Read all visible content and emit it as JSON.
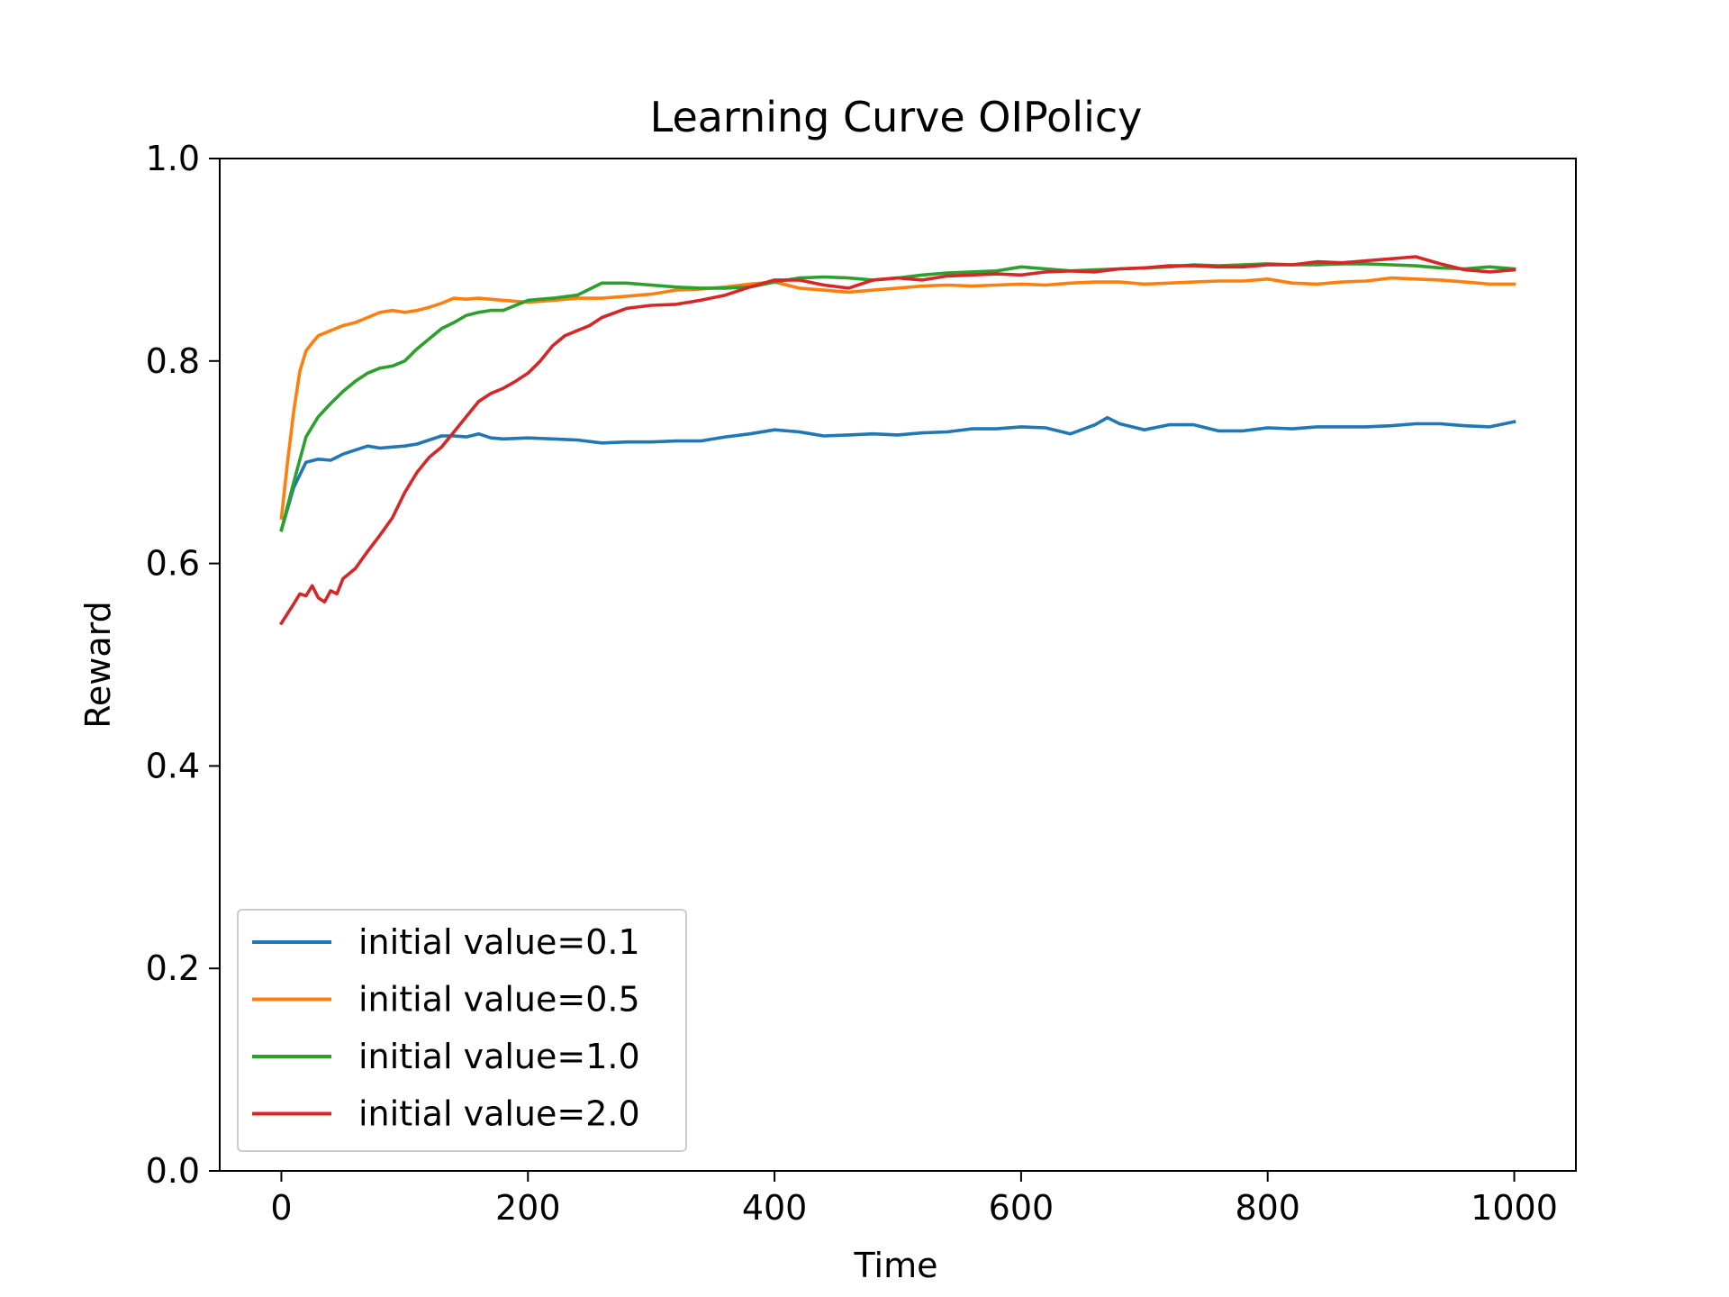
{
  "chart_data": {
    "type": "line",
    "title": "Learning Curve OIPolicy",
    "xlabel": "Time",
    "ylabel": "Reward",
    "xlim": [
      -50,
      1050
    ],
    "ylim": [
      0.0,
      1.0
    ],
    "xticks": [
      0,
      200,
      400,
      600,
      800,
      1000
    ],
    "xtick_labels": [
      "0",
      "200",
      "400",
      "600",
      "800",
      "1000"
    ],
    "yticks": [
      0.0,
      0.2,
      0.4,
      0.6,
      0.8,
      1.0
    ],
    "ytick_labels": [
      "0.0",
      "0.2",
      "0.4",
      "0.6",
      "0.8",
      "1.0"
    ],
    "grid": false,
    "legend_position": "lower-left",
    "series": [
      {
        "name": "initial value=0.1",
        "color": "#1f77b4",
        "x": [
          0,
          10,
          20,
          30,
          40,
          50,
          60,
          70,
          80,
          90,
          100,
          110,
          120,
          130,
          140,
          150,
          160,
          170,
          180,
          200,
          220,
          240,
          260,
          280,
          300,
          320,
          340,
          360,
          380,
          400,
          420,
          440,
          460,
          480,
          500,
          520,
          540,
          560,
          580,
          600,
          620,
          640,
          660,
          670,
          680,
          700,
          720,
          740,
          760,
          780,
          800,
          820,
          840,
          860,
          880,
          900,
          920,
          940,
          960,
          980,
          1000
        ],
        "y": [
          0.633,
          0.675,
          0.7,
          0.703,
          0.702,
          0.708,
          0.712,
          0.716,
          0.714,
          0.715,
          0.716,
          0.718,
          0.722,
          0.726,
          0.726,
          0.725,
          0.728,
          0.724,
          0.723,
          0.724,
          0.723,
          0.722,
          0.719,
          0.72,
          0.72,
          0.721,
          0.721,
          0.725,
          0.728,
          0.732,
          0.73,
          0.726,
          0.727,
          0.728,
          0.727,
          0.729,
          0.73,
          0.733,
          0.733,
          0.735,
          0.734,
          0.728,
          0.737,
          0.744,
          0.738,
          0.732,
          0.737,
          0.737,
          0.731,
          0.731,
          0.734,
          0.733,
          0.735,
          0.735,
          0.735,
          0.736,
          0.738,
          0.738,
          0.736,
          0.735,
          0.74
        ]
      },
      {
        "name": "initial value=0.5",
        "color": "#ff7f0e",
        "x": [
          0,
          5,
          10,
          15,
          20,
          25,
          30,
          40,
          50,
          60,
          70,
          80,
          90,
          100,
          110,
          120,
          130,
          140,
          150,
          160,
          180,
          200,
          220,
          240,
          260,
          280,
          300,
          320,
          340,
          360,
          380,
          400,
          420,
          440,
          460,
          480,
          500,
          520,
          540,
          560,
          580,
          600,
          620,
          640,
          660,
          680,
          700,
          720,
          740,
          760,
          780,
          800,
          820,
          840,
          860,
          880,
          900,
          920,
          940,
          960,
          980,
          1000
        ],
        "y": [
          0.645,
          0.7,
          0.75,
          0.79,
          0.81,
          0.818,
          0.825,
          0.83,
          0.835,
          0.838,
          0.843,
          0.848,
          0.85,
          0.848,
          0.85,
          0.853,
          0.857,
          0.862,
          0.861,
          0.862,
          0.86,
          0.858,
          0.86,
          0.862,
          0.862,
          0.864,
          0.866,
          0.87,
          0.871,
          0.873,
          0.876,
          0.878,
          0.872,
          0.87,
          0.868,
          0.87,
          0.872,
          0.874,
          0.875,
          0.874,
          0.875,
          0.876,
          0.875,
          0.877,
          0.878,
          0.878,
          0.876,
          0.877,
          0.878,
          0.879,
          0.879,
          0.881,
          0.877,
          0.876,
          0.878,
          0.879,
          0.882,
          0.881,
          0.88,
          0.878,
          0.876,
          0.876
        ]
      },
      {
        "name": "initial value=1.0",
        "color": "#2ca02c",
        "x": [
          0,
          10,
          20,
          30,
          40,
          50,
          60,
          70,
          80,
          90,
          100,
          110,
          120,
          130,
          140,
          150,
          160,
          170,
          180,
          190,
          200,
          220,
          240,
          260,
          280,
          300,
          320,
          340,
          360,
          380,
          400,
          420,
          440,
          460,
          480,
          500,
          520,
          540,
          560,
          580,
          600,
          620,
          640,
          660,
          680,
          700,
          720,
          740,
          760,
          780,
          800,
          820,
          840,
          860,
          880,
          900,
          920,
          940,
          960,
          980,
          1000
        ],
        "y": [
          0.633,
          0.68,
          0.725,
          0.745,
          0.758,
          0.77,
          0.78,
          0.788,
          0.793,
          0.795,
          0.8,
          0.812,
          0.822,
          0.832,
          0.838,
          0.845,
          0.848,
          0.85,
          0.85,
          0.855,
          0.86,
          0.862,
          0.865,
          0.877,
          0.877,
          0.875,
          0.873,
          0.872,
          0.872,
          0.873,
          0.878,
          0.882,
          0.883,
          0.882,
          0.88,
          0.882,
          0.885,
          0.887,
          0.888,
          0.889,
          0.893,
          0.891,
          0.889,
          0.89,
          0.891,
          0.892,
          0.893,
          0.895,
          0.894,
          0.895,
          0.896,
          0.895,
          0.895,
          0.896,
          0.896,
          0.895,
          0.894,
          0.892,
          0.891,
          0.893,
          0.891
        ]
      },
      {
        "name": "initial value=2.0",
        "color": "#d62728",
        "x": [
          0,
          10,
          15,
          20,
          25,
          30,
          35,
          40,
          45,
          50,
          55,
          60,
          70,
          80,
          90,
          100,
          110,
          120,
          130,
          140,
          150,
          160,
          170,
          180,
          190,
          200,
          210,
          220,
          230,
          240,
          250,
          260,
          280,
          300,
          320,
          340,
          360,
          380,
          400,
          420,
          440,
          460,
          480,
          500,
          520,
          540,
          560,
          580,
          600,
          620,
          640,
          660,
          680,
          700,
          720,
          740,
          760,
          780,
          800,
          820,
          840,
          860,
          880,
          900,
          920,
          940,
          960,
          980,
          1000
        ],
        "y": [
          0.541,
          0.56,
          0.57,
          0.568,
          0.578,
          0.566,
          0.562,
          0.573,
          0.57,
          0.585,
          0.59,
          0.595,
          0.612,
          0.628,
          0.645,
          0.67,
          0.69,
          0.705,
          0.715,
          0.73,
          0.745,
          0.76,
          0.768,
          0.773,
          0.78,
          0.788,
          0.8,
          0.815,
          0.825,
          0.83,
          0.835,
          0.843,
          0.852,
          0.855,
          0.856,
          0.86,
          0.865,
          0.873,
          0.88,
          0.88,
          0.875,
          0.872,
          0.88,
          0.882,
          0.88,
          0.884,
          0.885,
          0.886,
          0.885,
          0.888,
          0.889,
          0.888,
          0.891,
          0.892,
          0.894,
          0.894,
          0.893,
          0.893,
          0.895,
          0.895,
          0.898,
          0.897,
          0.899,
          0.901,
          0.903,
          0.896,
          0.89,
          0.888,
          0.89
        ]
      }
    ]
  }
}
